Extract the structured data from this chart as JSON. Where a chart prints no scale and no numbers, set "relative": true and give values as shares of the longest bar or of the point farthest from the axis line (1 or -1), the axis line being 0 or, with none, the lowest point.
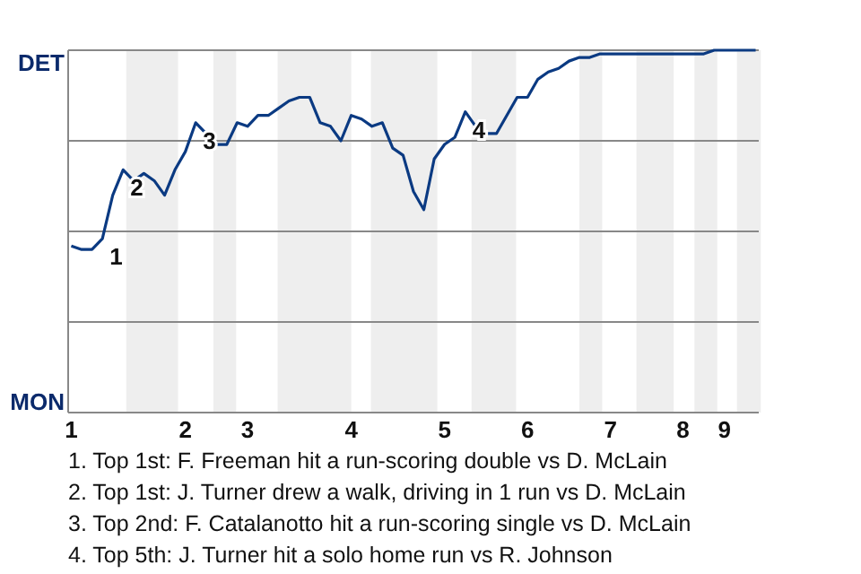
{
  "chart_data": {
    "type": "line",
    "relative": true,
    "categories": [
      "1",
      null,
      null,
      null,
      null,
      null,
      null,
      null,
      null,
      null,
      null,
      "2",
      null,
      null,
      null,
      null,
      null,
      "3",
      null,
      null,
      null,
      null,
      null,
      null,
      null,
      null,
      null,
      "4",
      null,
      null,
      null,
      null,
      null,
      null,
      null,
      null,
      "5",
      null,
      null,
      null,
      null,
      null,
      null,
      null,
      "6",
      null,
      null,
      null,
      null,
      null,
      null,
      null,
      "7",
      null,
      null,
      null,
      null,
      null,
      null,
      "8",
      null,
      null,
      null,
      "9",
      null,
      null,
      null
    ],
    "grid": "y",
    "marker": "none",
    "line_style": "solid",
    "series": [
      {
        "color": "#0b3a82",
        "values": [
          0.46,
          0.45,
          0.45,
          0.48,
          0.6,
          0.67,
          0.64,
          0.66,
          0.64,
          0.6,
          0.67,
          0.72,
          0.8,
          0.77,
          0.74,
          0.74,
          0.8,
          0.79,
          0.82,
          0.82,
          0.84,
          0.86,
          0.87,
          0.87,
          0.8,
          0.79,
          0.75,
          0.82,
          0.81,
          0.79,
          0.8,
          0.73,
          0.71,
          0.61,
          0.56,
          0.7,
          0.74,
          0.76,
          0.83,
          0.79,
          0.77,
          0.77,
          0.82,
          0.87,
          0.87,
          0.92,
          0.94,
          0.95,
          0.97,
          0.98,
          0.98,
          0.99,
          0.99,
          0.99,
          0.99,
          0.99,
          0.99,
          0.99,
          0.99,
          0.99,
          0.99,
          0.99,
          1,
          1,
          1,
          1,
          1
        ]
      }
    ],
    "annotations": [
      "DET",
      "MON",
      "1",
      "2",
      "3",
      "4",
      "1. Top 1st: F. Freeman hit a run-scoring double vs D. McLain",
      "2. Top 1st: J. Turner drew a walk, driving in 1 run vs D. McLain",
      "3. Top 2nd: F. Catalanotto hit a run-scoring single vs D. McLain",
      "4. Top 5th: J. Turner hit a solo home run vs R. Johnson"
    ]
  }
}
